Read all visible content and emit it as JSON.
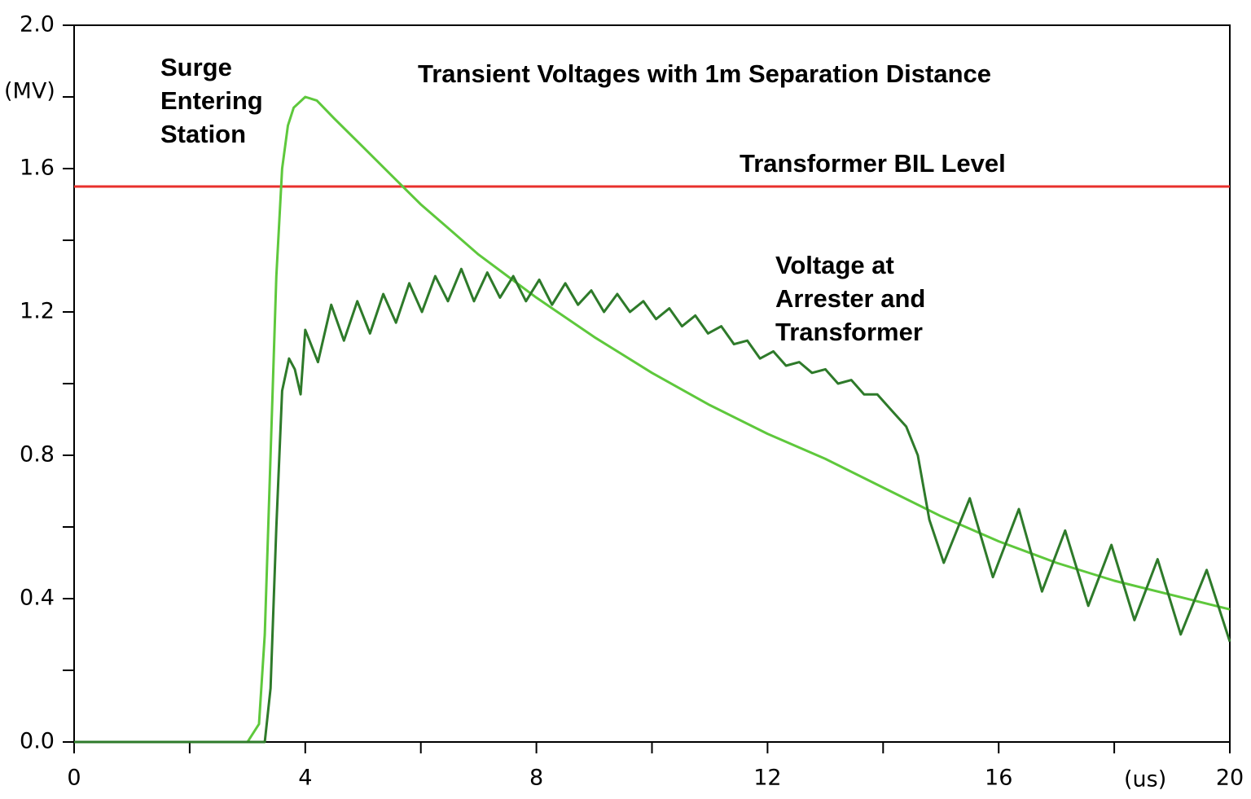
{
  "chart_data": {
    "type": "line",
    "title": "Transient Voltages with 1m Separation Distance",
    "x_label": "(us)",
    "y_label": "(MV)",
    "xlim": [
      0,
      20
    ],
    "xticks": [
      0,
      4,
      8,
      12,
      16,
      20
    ],
    "x_minor_ticks": [
      2,
      6,
      10,
      14,
      18
    ],
    "ylim": [
      0,
      2
    ],
    "yticks": [
      {
        "value": 0,
        "label": "0.0"
      },
      0.4,
      0.8,
      1.2,
      1.6,
      {
        "value": 2,
        "label": "2.0"
      }
    ],
    "y_minor_ticks": [
      0.2,
      0.6,
      1.0,
      1.4,
      1.8
    ],
    "reference_line": {
      "value": 1.55,
      "color": "#e8302c"
    },
    "series": [
      {
        "color": "#5ec83c",
        "x": [
          0,
          3.0,
          3.2,
          3.3,
          3.4,
          3.5,
          3.6,
          3.7,
          3.8,
          4.0,
          4.2,
          4.5,
          5,
          5.5,
          6,
          6.5,
          7,
          7.5,
          8,
          9,
          10,
          11,
          12,
          13,
          14,
          15,
          16,
          17,
          18,
          19,
          20
        ],
        "values": [
          0,
          0,
          0.05,
          0.3,
          0.8,
          1.3,
          1.6,
          1.72,
          1.77,
          1.8,
          1.79,
          1.74,
          1.66,
          1.58,
          1.5,
          1.43,
          1.36,
          1.3,
          1.24,
          1.13,
          1.03,
          0.94,
          0.86,
          0.79,
          0.71,
          0.63,
          0.56,
          0.5,
          0.45,
          0.41,
          0.37
        ]
      },
      {
        "color": "#2e7a2a",
        "x": [
          0,
          3.3,
          3.4,
          3.5,
          3.6,
          3.72,
          3.82,
          3.92,
          4.0,
          4.22,
          4.45,
          4.67,
          4.9,
          5.12,
          5.35,
          5.57,
          5.8,
          6.02,
          6.25,
          6.47,
          6.7,
          6.92,
          7.15,
          7.37,
          7.6,
          7.82,
          8.05,
          8.27,
          8.5,
          8.72,
          8.95,
          9.17,
          9.4,
          9.62,
          9.85,
          10.07,
          10.3,
          10.52,
          10.75,
          10.97,
          11.2,
          11.42,
          11.65,
          11.87,
          12.1,
          12.32,
          12.55,
          12.77,
          13.0,
          13.22,
          13.45,
          13.67,
          13.9,
          14.12,
          14.4,
          14.6,
          14.8,
          15.05,
          15.5,
          15.9,
          16.35,
          16.75,
          17.15,
          17.55,
          17.95,
          18.35,
          18.75,
          19.15,
          19.6,
          20
        ],
        "values": [
          0,
          0,
          0.15,
          0.6,
          0.98,
          1.07,
          1.04,
          0.97,
          1.15,
          1.06,
          1.22,
          1.12,
          1.23,
          1.14,
          1.25,
          1.17,
          1.28,
          1.2,
          1.3,
          1.23,
          1.32,
          1.23,
          1.31,
          1.24,
          1.3,
          1.23,
          1.29,
          1.22,
          1.28,
          1.22,
          1.26,
          1.2,
          1.25,
          1.2,
          1.23,
          1.18,
          1.21,
          1.16,
          1.19,
          1.14,
          1.16,
          1.11,
          1.12,
          1.07,
          1.09,
          1.05,
          1.06,
          1.03,
          1.04,
          1.0,
          1.01,
          0.97,
          0.97,
          0.93,
          0.88,
          0.8,
          0.62,
          0.5,
          0.68,
          0.46,
          0.65,
          0.42,
          0.59,
          0.38,
          0.55,
          0.34,
          0.51,
          0.3,
          0.48,
          0.28
        ]
      }
    ],
    "annotations": [
      {
        "lines": [
          "Surge",
          "Entering",
          "Station"
        ]
      },
      {
        "lines": [
          "Transformer BIL Level"
        ]
      },
      {
        "lines": [
          "Voltage at",
          "Arrester and",
          "Transformer"
        ]
      }
    ]
  }
}
